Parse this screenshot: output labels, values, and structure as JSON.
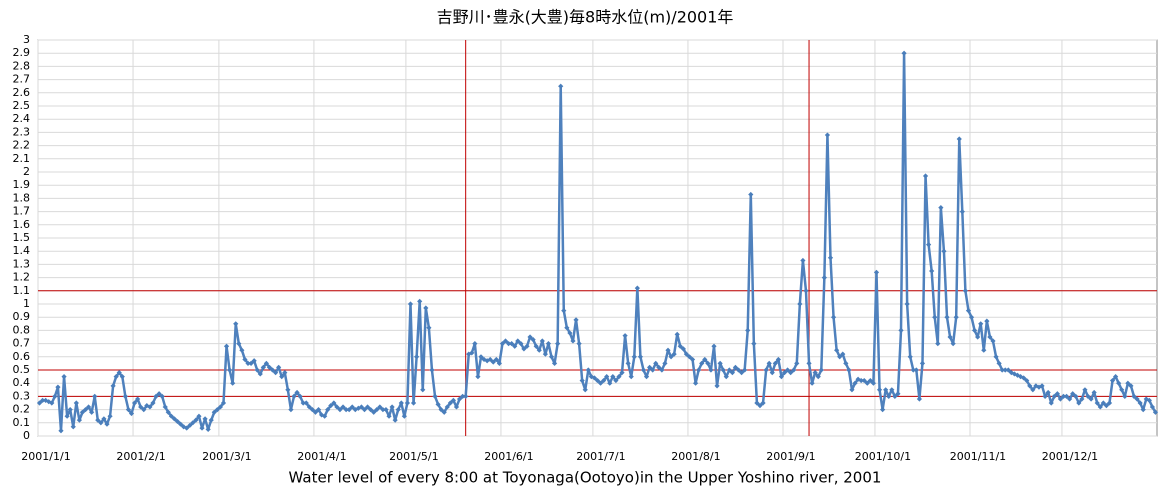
{
  "chart_data": {
    "type": "line",
    "title": "吉野川･豊永(大豊)毎8時水位(m)/2001年",
    "x_label": "Water level of every 8:00 at Toyonaga(Ootoyo)in the Upper Yoshino river, 2001",
    "categories": [
      "2001/1/1",
      null,
      null,
      null,
      null,
      null,
      null,
      null,
      null,
      null,
      null,
      null,
      null,
      null,
      null,
      null,
      null,
      null,
      null,
      null,
      null,
      null,
      null,
      null,
      null,
      null,
      null,
      null,
      null,
      null,
      null,
      "2001/2/1",
      null,
      null,
      null,
      null,
      null,
      null,
      null,
      null,
      null,
      null,
      null,
      null,
      null,
      null,
      null,
      null,
      null,
      null,
      null,
      null,
      null,
      null,
      null,
      null,
      null,
      null,
      null,
      "2001/3/1",
      null,
      null,
      null,
      null,
      null,
      null,
      null,
      null,
      null,
      null,
      null,
      null,
      null,
      null,
      null,
      null,
      null,
      null,
      null,
      null,
      null,
      null,
      null,
      null,
      null,
      null,
      null,
      null,
      null,
      null,
      "2001/4/1",
      null,
      null,
      null,
      null,
      null,
      null,
      null,
      null,
      null,
      null,
      null,
      null,
      null,
      null,
      null,
      null,
      null,
      null,
      null,
      null,
      null,
      null,
      null,
      null,
      null,
      null,
      null,
      null,
      null,
      "2001/5/1",
      null,
      null,
      null,
      null,
      null,
      null,
      null,
      null,
      null,
      null,
      null,
      null,
      null,
      null,
      null,
      null,
      null,
      null,
      null,
      null,
      null,
      null,
      null,
      null,
      null,
      null,
      null,
      null,
      null,
      null,
      "2001/6/1",
      null,
      null,
      null,
      null,
      null,
      null,
      null,
      null,
      null,
      null,
      null,
      null,
      null,
      null,
      null,
      null,
      null,
      null,
      null,
      null,
      null,
      null,
      null,
      null,
      null,
      null,
      null,
      null,
      null,
      "2001/7/1",
      null,
      null,
      null,
      null,
      null,
      null,
      null,
      null,
      null,
      null,
      null,
      null,
      null,
      null,
      null,
      null,
      null,
      null,
      null,
      null,
      null,
      null,
      null,
      null,
      null,
      null,
      null,
      null,
      null,
      null,
      "2001/8/1",
      null,
      null,
      null,
      null,
      null,
      null,
      null,
      null,
      null,
      null,
      null,
      null,
      null,
      null,
      null,
      null,
      null,
      null,
      null,
      null,
      null,
      null,
      null,
      null,
      null,
      null,
      null,
      null,
      null,
      null,
      "2001/9/1",
      null,
      null,
      null,
      null,
      null,
      null,
      null,
      null,
      null,
      null,
      null,
      null,
      null,
      null,
      null,
      null,
      null,
      null,
      null,
      null,
      null,
      null,
      null,
      null,
      null,
      null,
      null,
      null,
      null,
      "2001/10/1",
      null,
      null,
      null,
      null,
      null,
      null,
      null,
      null,
      null,
      null,
      null,
      null,
      null,
      null,
      null,
      null,
      null,
      null,
      null,
      null,
      null,
      null,
      null,
      null,
      null,
      null,
      null,
      null,
      null,
      null,
      "2001/11/1",
      null,
      null,
      null,
      null,
      null,
      null,
      null,
      null,
      null,
      null,
      null,
      null,
      null,
      null,
      null,
      null,
      null,
      null,
      null,
      null,
      null,
      null,
      null,
      null,
      null,
      null,
      null,
      null,
      null,
      "2001/12/1",
      null,
      null,
      null,
      null,
      null,
      null,
      null,
      null,
      null,
      null,
      null,
      null,
      null,
      null,
      null,
      null,
      null,
      null,
      null,
      null,
      null,
      null,
      null,
      null,
      null,
      null,
      null,
      null,
      null,
      null
    ],
    "values": [
      0.25,
      0.27,
      0.27,
      0.26,
      0.25,
      0.3,
      0.37,
      0.04,
      0.45,
      0.15,
      0.2,
      0.07,
      0.25,
      0.12,
      0.18,
      0.2,
      0.22,
      0.18,
      0.3,
      0.12,
      0.1,
      0.13,
      0.09,
      0.15,
      0.38,
      0.45,
      0.48,
      0.45,
      0.3,
      0.2,
      0.17,
      0.25,
      0.28,
      0.22,
      0.2,
      0.23,
      0.22,
      0.25,
      0.3,
      0.32,
      0.3,
      0.22,
      0.18,
      0.15,
      0.13,
      0.11,
      0.09,
      0.07,
      0.06,
      0.08,
      0.1,
      0.12,
      0.15,
      0.06,
      0.13,
      0.05,
      0.12,
      0.18,
      0.2,
      0.22,
      0.25,
      0.68,
      0.5,
      0.4,
      0.85,
      0.7,
      0.65,
      0.58,
      0.55,
      0.55,
      0.57,
      0.5,
      0.47,
      0.52,
      0.55,
      0.52,
      0.5,
      0.48,
      0.52,
      0.45,
      0.48,
      0.35,
      0.2,
      0.3,
      0.33,
      0.3,
      0.25,
      0.25,
      0.22,
      0.2,
      0.18,
      0.2,
      0.16,
      0.15,
      0.2,
      0.23,
      0.25,
      0.22,
      0.2,
      0.22,
      0.2,
      0.2,
      0.22,
      0.2,
      0.21,
      0.22,
      0.2,
      0.22,
      0.2,
      0.18,
      0.2,
      0.22,
      0.2,
      0.2,
      0.15,
      0.22,
      0.12,
      0.2,
      0.25,
      0.15,
      0.25,
      1.0,
      0.25,
      0.6,
      1.02,
      0.35,
      0.97,
      0.82,
      0.5,
      0.3,
      0.24,
      0.2,
      0.18,
      0.22,
      0.25,
      0.27,
      0.22,
      0.28,
      0.3,
      0.3,
      0.62,
      0.63,
      0.7,
      0.45,
      0.6,
      0.58,
      0.57,
      0.58,
      0.56,
      0.58,
      0.55,
      0.7,
      0.72,
      0.7,
      0.7,
      0.68,
      0.72,
      0.7,
      0.66,
      0.68,
      0.75,
      0.73,
      0.68,
      0.65,
      0.72,
      0.62,
      0.7,
      0.6,
      0.55,
      0.7,
      2.65,
      0.95,
      0.82,
      0.78,
      0.72,
      0.88,
      0.7,
      0.42,
      0.35,
      0.5,
      0.45,
      0.44,
      0.42,
      0.4,
      0.42,
      0.45,
      0.4,
      0.45,
      0.42,
      0.45,
      0.48,
      0.76,
      0.55,
      0.45,
      0.6,
      1.12,
      0.6,
      0.5,
      0.45,
      0.52,
      0.5,
      0.55,
      0.52,
      0.5,
      0.55,
      0.65,
      0.6,
      0.62,
      0.77,
      0.68,
      0.66,
      0.62,
      0.6,
      0.58,
      0.4,
      0.5,
      0.55,
      0.58,
      0.55,
      0.5,
      0.68,
      0.38,
      0.55,
      0.5,
      0.45,
      0.5,
      0.48,
      0.52,
      0.5,
      0.48,
      0.5,
      0.8,
      1.83,
      0.7,
      0.25,
      0.23,
      0.25,
      0.5,
      0.55,
      0.48,
      0.55,
      0.58,
      0.45,
      0.48,
      0.5,
      0.48,
      0.5,
      0.55,
      1.0,
      1.33,
      1.1,
      0.55,
      0.4,
      0.48,
      0.45,
      0.5,
      1.2,
      2.28,
      1.35,
      0.9,
      0.65,
      0.6,
      0.62,
      0.55,
      0.5,
      0.35,
      0.4,
      0.43,
      0.42,
      0.42,
      0.4,
      0.42,
      0.4,
      1.24,
      0.35,
      0.2,
      0.35,
      0.3,
      0.35,
      0.3,
      0.32,
      0.8,
      2.9,
      1.0,
      0.6,
      0.5,
      0.5,
      0.28,
      0.55,
      1.97,
      1.45,
      1.25,
      0.9,
      0.7,
      1.73,
      1.4,
      0.9,
      0.75,
      0.7,
      0.9,
      2.25,
      1.7,
      1.1,
      0.95,
      0.9,
      0.8,
      0.75,
      0.85,
      0.65,
      0.87,
      0.75,
      0.72,
      0.6,
      0.55,
      0.5,
      0.5,
      0.5,
      0.48,
      0.47,
      0.46,
      0.45,
      0.44,
      0.42,
      0.38,
      0.35,
      0.38,
      0.37,
      0.38,
      0.3,
      0.33,
      0.25,
      0.3,
      0.32,
      0.28,
      0.3,
      0.3,
      0.28,
      0.32,
      0.3,
      0.25,
      0.28,
      0.35,
      0.3,
      0.28,
      0.33,
      0.25,
      0.22,
      0.25,
      0.23,
      0.25,
      0.42,
      0.45,
      0.4,
      0.35,
      0.3,
      0.4,
      0.38,
      0.3,
      0.28,
      0.25,
      0.2,
      0.28,
      0.27,
      0.22,
      0.18
    ],
    "color": "#4a7ebb",
    "ylim": [
      0,
      3
    ],
    "yticks": [
      0,
      0.1,
      0.2,
      0.3,
      0.4,
      0.5,
      0.6,
      0.7,
      0.8,
      0.9,
      1,
      1.1,
      1.2,
      1.3,
      1.4,
      1.5,
      1.6,
      1.7,
      1.8,
      1.9,
      2,
      2.1,
      2.2,
      2.3,
      2.4,
      2.5,
      2.6,
      2.7,
      2.8,
      2.9,
      3
    ],
    "grid": true,
    "reference_lines_y": [
      1.1,
      0.5,
      0.3
    ],
    "reference_lines_x": [
      139,
      251
    ],
    "reference_color": "#c00000"
  }
}
